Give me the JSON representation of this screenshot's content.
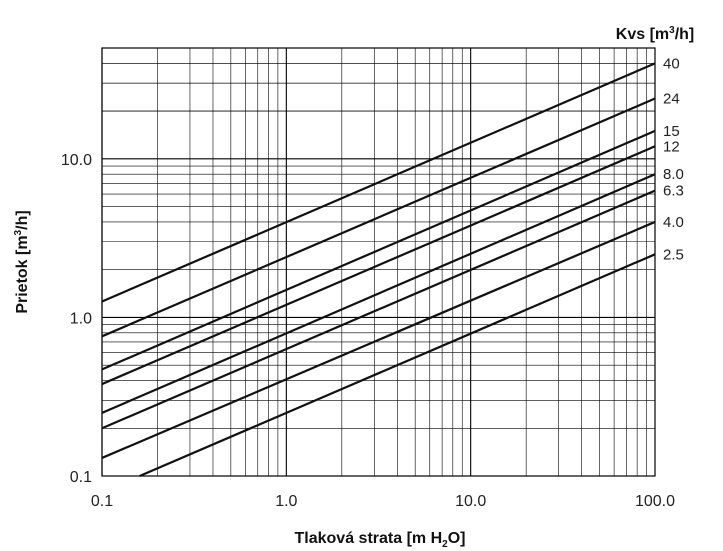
{
  "chart_data": {
    "type": "line",
    "title": "",
    "xlabel": {
      "main": "Tlaková strata [m H",
      "sub": "2",
      "tail": "O]"
    },
    "ylabel": {
      "main": "Prietok [m",
      "sup": "3",
      "tail": "/h]"
    },
    "legend_title": {
      "main": "Kvs [m",
      "sup": "3",
      "tail": "/h]"
    },
    "legend_placement": "right",
    "x_scale": "log",
    "y_scale": "log",
    "xlim": [
      0.1,
      100.0
    ],
    "ylim": [
      0.1,
      50
    ],
    "x_ticks": [
      0.1,
      1.0,
      10.0,
      100.0
    ],
    "x_tick_labels": [
      "0.1",
      "1.0",
      "10.0",
      "100.0"
    ],
    "y_ticks": [
      0.1,
      1.0,
      10.0
    ],
    "y_tick_labels": [
      "0.1",
      "1.0",
      "10.0"
    ],
    "grid": true,
    "series": [
      {
        "name": "40",
        "kvs": 40,
        "x": [
          0.1,
          100.0
        ],
        "y": [
          1.26,
          40.0
        ]
      },
      {
        "name": "24",
        "kvs": 24,
        "x": [
          0.1,
          100.0
        ],
        "y": [
          0.76,
          24.0
        ]
      },
      {
        "name": "15",
        "kvs": 15,
        "x": [
          0.1,
          100.0
        ],
        "y": [
          0.47,
          15.0
        ]
      },
      {
        "name": "12",
        "kvs": 12,
        "x": [
          0.1,
          100.0
        ],
        "y": [
          0.38,
          12.0
        ]
      },
      {
        "name": "8.0",
        "kvs": 8.0,
        "x": [
          0.1,
          100.0
        ],
        "y": [
          0.25,
          8.0
        ]
      },
      {
        "name": "6.3",
        "kvs": 6.3,
        "x": [
          0.1,
          100.0
        ],
        "y": [
          0.2,
          6.3
        ]
      },
      {
        "name": "4.0",
        "kvs": 4.0,
        "x": [
          0.1,
          100.0
        ],
        "y": [
          0.13,
          4.0
        ]
      },
      {
        "name": "2.5",
        "kvs": 2.5,
        "x": [
          0.16,
          100.0
        ],
        "y": [
          0.1,
          2.5
        ]
      }
    ]
  }
}
